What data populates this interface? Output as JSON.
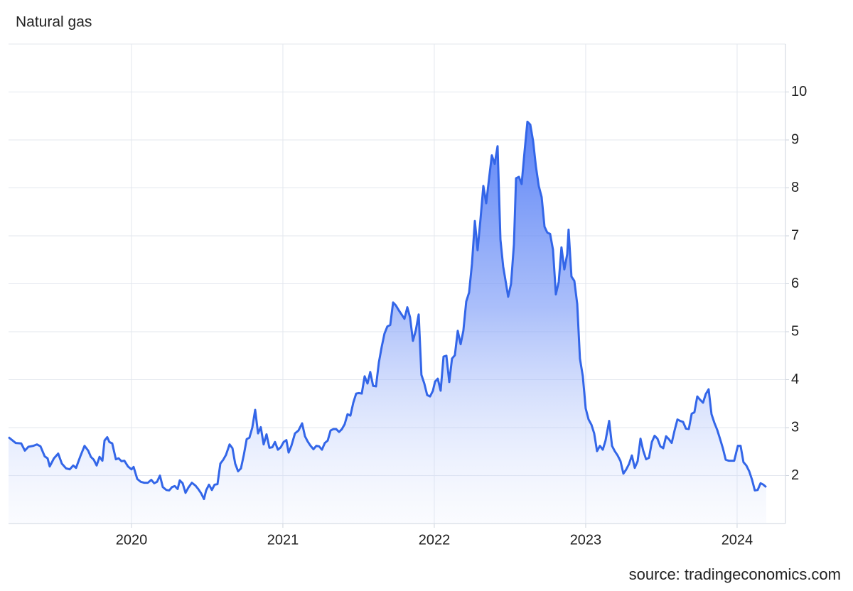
{
  "chart_data": {
    "type": "area",
    "title": "Natural gas",
    "source": "source: tradingeconomics.com",
    "x": [
      2019.188,
      2019.235,
      2019.272,
      2019.296,
      2019.319,
      2019.352,
      2019.376,
      2019.399,
      2019.427,
      2019.446,
      2019.46,
      2019.488,
      2019.516,
      2019.54,
      2019.568,
      2019.592,
      2019.615,
      2019.634,
      2019.662,
      2019.69,
      2019.714,
      2019.732,
      2019.751,
      2019.77,
      2019.789,
      2019.808,
      2019.822,
      2019.84,
      2019.854,
      2019.873,
      2019.897,
      2019.915,
      2019.934,
      2019.953,
      2019.977,
      2020.0,
      2020.014,
      2020.038,
      2020.061,
      2020.085,
      2020.108,
      2020.131,
      2020.15,
      2020.169,
      2020.188,
      2020.207,
      2020.23,
      2020.249,
      2020.268,
      2020.286,
      2020.305,
      2020.319,
      2020.338,
      2020.357,
      2020.376,
      2020.399,
      2020.423,
      2020.441,
      2020.46,
      2020.479,
      2020.493,
      2020.512,
      2020.531,
      2020.549,
      2020.568,
      2020.587,
      2020.606,
      2020.624,
      2020.648,
      2020.667,
      2020.685,
      2020.704,
      2020.723,
      2020.742,
      2020.761,
      2020.779,
      2020.798,
      2020.817,
      2020.836,
      2020.854,
      2020.873,
      2020.892,
      2020.911,
      2020.93,
      2020.948,
      2020.967,
      2020.986,
      2021.005,
      2021.023,
      2021.038,
      2021.056,
      2021.08,
      2021.103,
      2021.127,
      2021.146,
      2021.164,
      2021.183,
      2021.202,
      2021.221,
      2021.239,
      2021.258,
      2021.277,
      2021.296,
      2021.315,
      2021.333,
      2021.352,
      2021.371,
      2021.39,
      2021.408,
      2021.427,
      2021.446,
      2021.465,
      2021.484,
      2021.502,
      2021.521,
      2021.54,
      2021.559,
      2021.577,
      2021.596,
      2021.615,
      2021.634,
      2021.653,
      2021.671,
      2021.69,
      2021.709,
      2021.728,
      2021.746,
      2021.765,
      2021.784,
      2021.803,
      2021.822,
      2021.84,
      2021.859,
      2021.878,
      2021.897,
      2021.915,
      2021.934,
      2021.953,
      2021.972,
      2021.991,
      2022.005,
      2022.023,
      2022.042,
      2022.061,
      2022.08,
      2022.099,
      2022.117,
      2022.136,
      2022.155,
      2022.174,
      2022.192,
      2022.211,
      2022.23,
      2022.249,
      2022.268,
      2022.286,
      2022.305,
      2022.324,
      2022.343,
      2022.362,
      2022.38,
      2022.399,
      2022.418,
      2022.437,
      2022.455,
      2022.474,
      2022.488,
      2022.507,
      2022.526,
      2022.54,
      2022.559,
      2022.577,
      2022.596,
      2022.615,
      2022.634,
      2022.653,
      2022.671,
      2022.69,
      2022.709,
      2022.728,
      2022.746,
      2022.765,
      2022.784,
      2022.803,
      2022.822,
      2022.84,
      2022.859,
      2022.878,
      2022.887,
      2022.906,
      2022.925,
      2022.944,
      2022.962,
      2022.981,
      2023.0,
      2023.019,
      2023.038,
      2023.056,
      2023.075,
      2023.094,
      2023.113,
      2023.131,
      2023.155,
      2023.174,
      2023.192,
      2023.211,
      2023.23,
      2023.249,
      2023.268,
      2023.286,
      2023.305,
      2023.324,
      2023.343,
      2023.362,
      2023.38,
      2023.399,
      2023.418,
      2023.437,
      2023.455,
      2023.474,
      2023.493,
      2023.512,
      2023.531,
      2023.549,
      2023.568,
      2023.587,
      2023.606,
      2023.624,
      2023.643,
      2023.662,
      2023.681,
      2023.7,
      2023.718,
      2023.737,
      2023.756,
      2023.775,
      2023.793,
      2023.812,
      2023.831,
      2023.85,
      2023.869,
      2023.887,
      2023.906,
      2023.925,
      2023.944,
      2023.962,
      2023.981,
      2024.005,
      2024.023,
      2024.042,
      2024.061,
      2024.08,
      2024.099,
      2024.117,
      2024.136,
      2024.155,
      2024.174,
      2024.192
    ],
    "series": [
      {
        "color": "#3366e8",
        "values": [
          2.8,
          2.68,
          2.67,
          2.52,
          2.6,
          2.62,
          2.65,
          2.61,
          2.4,
          2.36,
          2.19,
          2.36,
          2.46,
          2.25,
          2.15,
          2.13,
          2.21,
          2.16,
          2.4,
          2.62,
          2.52,
          2.39,
          2.33,
          2.21,
          2.39,
          2.31,
          2.73,
          2.8,
          2.7,
          2.67,
          2.34,
          2.36,
          2.3,
          2.31,
          2.19,
          2.13,
          2.18,
          1.93,
          1.87,
          1.85,
          1.85,
          1.91,
          1.84,
          1.87,
          2.0,
          1.76,
          1.7,
          1.69,
          1.76,
          1.78,
          1.72,
          1.9,
          1.84,
          1.64,
          1.75,
          1.85,
          1.79,
          1.72,
          1.63,
          1.51,
          1.69,
          1.81,
          1.7,
          1.81,
          1.82,
          2.25,
          2.33,
          2.43,
          2.65,
          2.57,
          2.25,
          2.09,
          2.15,
          2.43,
          2.76,
          2.79,
          3.0,
          3.37,
          2.88,
          3.01,
          2.65,
          2.86,
          2.58,
          2.59,
          2.7,
          2.54,
          2.59,
          2.7,
          2.74,
          2.48,
          2.62,
          2.88,
          2.94,
          3.09,
          2.82,
          2.71,
          2.62,
          2.55,
          2.62,
          2.61,
          2.54,
          2.68,
          2.73,
          2.94,
          2.97,
          2.97,
          2.91,
          2.97,
          3.07,
          3.28,
          3.25,
          3.52,
          3.71,
          3.72,
          3.71,
          4.07,
          3.92,
          4.16,
          3.87,
          3.86,
          4.36,
          4.69,
          4.96,
          5.11,
          5.14,
          5.61,
          5.55,
          5.45,
          5.36,
          5.27,
          5.51,
          5.3,
          4.81,
          5.03,
          5.36,
          4.1,
          3.92,
          3.68,
          3.65,
          3.77,
          3.96,
          4.02,
          3.77,
          4.48,
          4.5,
          3.95,
          4.44,
          4.51,
          5.02,
          4.74,
          5.02,
          5.63,
          5.82,
          6.42,
          7.31,
          6.7,
          7.34,
          8.04,
          7.68,
          8.2,
          8.68,
          8.5,
          8.87,
          6.92,
          6.36,
          6.0,
          5.73,
          6.0,
          6.82,
          8.2,
          8.23,
          8.08,
          8.75,
          9.38,
          9.32,
          8.97,
          8.45,
          8.04,
          7.81,
          7.19,
          7.07,
          7.04,
          6.71,
          5.78,
          6.04,
          6.76,
          6.3,
          6.62,
          7.13,
          6.15,
          6.06,
          5.58,
          4.44,
          4.07,
          3.4,
          3.17,
          3.06,
          2.88,
          2.51,
          2.62,
          2.54,
          2.73,
          3.14,
          2.62,
          2.51,
          2.42,
          2.3,
          2.04,
          2.13,
          2.24,
          2.42,
          2.16,
          2.3,
          2.77,
          2.52,
          2.34,
          2.37,
          2.7,
          2.83,
          2.77,
          2.61,
          2.57,
          2.82,
          2.76,
          2.68,
          2.94,
          3.17,
          3.14,
          3.12,
          2.98,
          2.97,
          3.29,
          3.32,
          3.65,
          3.58,
          3.52,
          3.7,
          3.8,
          3.28,
          3.1,
          2.95,
          2.77,
          2.57,
          2.33,
          2.31,
          2.31,
          2.31,
          2.62,
          2.62,
          2.28,
          2.21,
          2.09,
          1.91,
          1.69,
          1.7,
          1.84,
          1.81,
          1.76
        ]
      }
    ],
    "xlim": [
      2019.188,
      2024.296
    ],
    "xticks": [
      2020,
      2021,
      2022,
      2023,
      2024
    ],
    "ylim": [
      1,
      11
    ],
    "yticks": [
      2,
      3,
      4,
      5,
      6,
      7,
      8,
      9,
      10
    ],
    "grid": true
  }
}
